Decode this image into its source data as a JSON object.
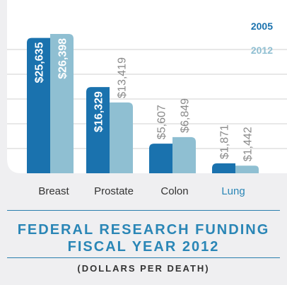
{
  "chart_data": {
    "type": "bar",
    "title": "FEDERAL RESEARCH FUNDING",
    "title_line2": "FISCAL YEAR 2012",
    "subtitle": "(DOLLARS PER DEATH)",
    "categories": [
      "Breast",
      "Prostate",
      "Colon",
      "Lung"
    ],
    "series": [
      {
        "name": "2005",
        "values": [
          25635,
          16329,
          5607,
          1871
        ],
        "labels": [
          "$25,635",
          "$16,329",
          "$5,607",
          "$1,871"
        ],
        "color": "#1a72ae"
      },
      {
        "name": "2012",
        "values": [
          26398,
          13419,
          6849,
          1442
        ],
        "labels": [
          "$26,398",
          "$13,419",
          "$6,849",
          "$1,442"
        ],
        "color": "#8fbfd2"
      }
    ],
    "ylim": [
      0,
      28000
    ],
    "grid": true,
    "legend": "top-right",
    "highlight_category": "Lung",
    "colors": {
      "accent": "#2a86b6",
      "text": "#333333",
      "value_label_outside": "#8a8a8a",
      "grid": "#d0d0d0"
    }
  }
}
